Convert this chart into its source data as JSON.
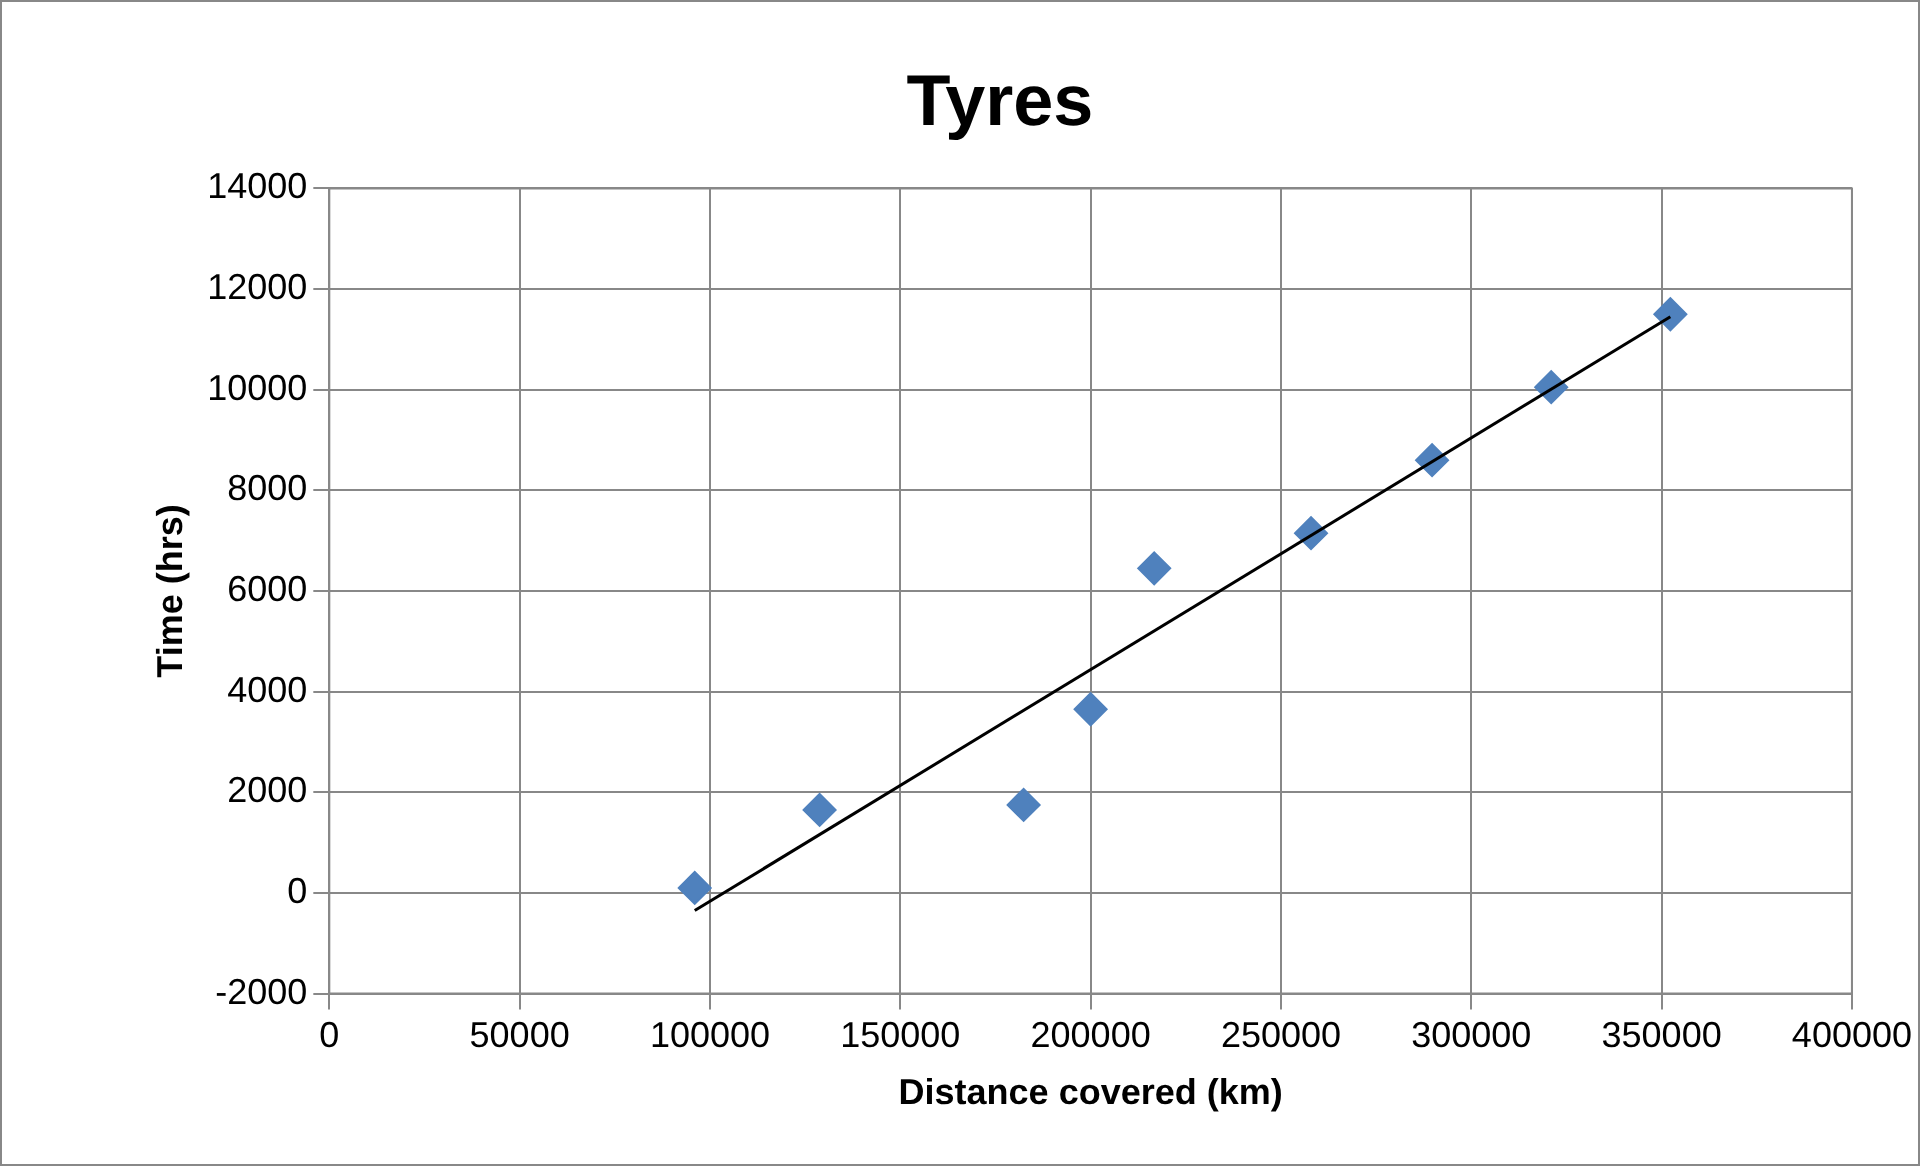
{
  "chart_data": {
    "type": "scatter",
    "title": "Tyres",
    "xlabel": "Distance covered (km)",
    "ylabel": "Time (hrs)",
    "x": [
      96000,
      128800,
      182400,
      200000,
      216700,
      257900,
      289700,
      321000,
      352300
    ],
    "series": [
      {
        "color": "#4f81bd",
        "marker": "diamond",
        "values": [
          100,
          1650,
          1750,
          3650,
          6450,
          7150,
          8600,
          10050,
          11500
        ]
      },
      {
        "type": "line",
        "color": "#000000",
        "marker": "none",
        "x": [
          96000,
          352300
        ],
        "values": [
          -350,
          11450
        ]
      }
    ],
    "xlim": [
      0,
      400000
    ],
    "xticks": [
      0,
      50000,
      100000,
      150000,
      200000,
      250000,
      300000,
      350000,
      400000
    ],
    "ylim": [
      -2000,
      14000
    ],
    "yticks": [
      -2000,
      0,
      2000,
      4000,
      6000,
      8000,
      10000,
      12000,
      14000
    ],
    "grid": true,
    "legend": false
  }
}
